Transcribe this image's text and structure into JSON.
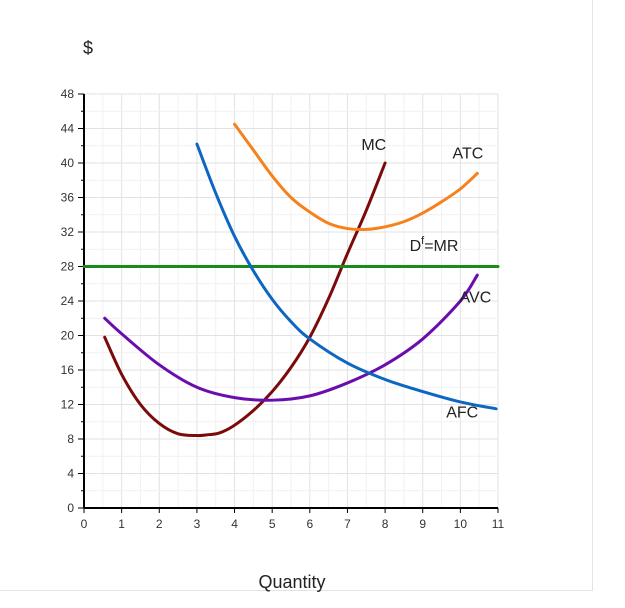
{
  "chart_data": {
    "type": "line",
    "ylabel": "$",
    "xlabel": "Quantity",
    "xlim": [
      0,
      11
    ],
    "ylim": [
      0,
      48
    ],
    "x_ticks": [
      0,
      1,
      2,
      3,
      4,
      5,
      6,
      7,
      8,
      9,
      10,
      11
    ],
    "y_ticks": [
      0,
      4,
      8,
      12,
      16,
      20,
      24,
      28,
      32,
      36,
      40,
      44,
      48
    ],
    "grid": true,
    "series": [
      {
        "name": "MC",
        "color": "#7b0a0a",
        "points": [
          [
            0.55,
            19.8
          ],
          [
            1.0,
            15.5
          ],
          [
            1.5,
            12.0
          ],
          [
            2.0,
            9.8
          ],
          [
            2.5,
            8.6
          ],
          [
            3.0,
            8.4
          ],
          [
            3.3,
            8.5
          ],
          [
            3.6,
            8.7
          ],
          [
            4.0,
            9.6
          ],
          [
            4.5,
            11.3
          ],
          [
            5.0,
            13.5
          ],
          [
            5.5,
            16.3
          ],
          [
            6.0,
            19.8
          ],
          [
            6.5,
            24.3
          ],
          [
            7.0,
            29.5
          ],
          [
            7.5,
            34.5
          ],
          [
            8.0,
            40.0
          ]
        ]
      },
      {
        "name": "ATC",
        "color": "#f5821f",
        "points": [
          [
            4.0,
            44.5
          ],
          [
            4.5,
            41.5
          ],
          [
            5.0,
            38.5
          ],
          [
            5.5,
            36.0
          ],
          [
            6.0,
            34.3
          ],
          [
            6.5,
            33.0
          ],
          [
            7.0,
            32.4
          ],
          [
            7.5,
            32.3
          ],
          [
            8.0,
            32.6
          ],
          [
            8.5,
            33.2
          ],
          [
            9.0,
            34.2
          ],
          [
            9.5,
            35.5
          ],
          [
            10.0,
            37.0
          ],
          [
            10.45,
            38.8
          ]
        ]
      },
      {
        "name": "D",
        "label_sup": "f",
        "label_suffix": "=MR",
        "color": "#1a8a1a",
        "points": [
          [
            0,
            28
          ],
          [
            11,
            28
          ]
        ]
      },
      {
        "name": "AVC",
        "color": "#6a0dad",
        "points": [
          [
            0.55,
            22.0
          ],
          [
            1.0,
            20.2
          ],
          [
            2.0,
            16.6
          ],
          [
            3.0,
            14.0
          ],
          [
            4.0,
            12.8
          ],
          [
            5.0,
            12.5
          ],
          [
            6.0,
            13.0
          ],
          [
            7.0,
            14.5
          ],
          [
            8.0,
            16.6
          ],
          [
            9.0,
            19.6
          ],
          [
            10.0,
            24.0
          ],
          [
            10.45,
            27.0
          ]
        ]
      },
      {
        "name": "AFC",
        "color": "#0d66c2",
        "points": [
          [
            3.0,
            42.2
          ],
          [
            3.5,
            36.5
          ],
          [
            4.0,
            31.5
          ],
          [
            4.5,
            27.5
          ],
          [
            5.0,
            24.2
          ],
          [
            5.5,
            21.6
          ],
          [
            6.0,
            19.6
          ],
          [
            7.0,
            16.8
          ],
          [
            8.0,
            14.9
          ],
          [
            9.0,
            13.5
          ],
          [
            10.0,
            12.3
          ],
          [
            10.95,
            11.5
          ]
        ]
      }
    ],
    "labels": [
      {
        "text": "MC",
        "x": 7.7,
        "y": 41.5
      },
      {
        "text": "ATC",
        "x": 10.2,
        "y": 40.5
      },
      {
        "text": "D",
        "x": 9.3,
        "y": 29.8
      },
      {
        "text": "AVC",
        "x": 10.4,
        "y": 23.8
      },
      {
        "text": "AFC",
        "x": 10.05,
        "y": 10.5
      }
    ]
  }
}
